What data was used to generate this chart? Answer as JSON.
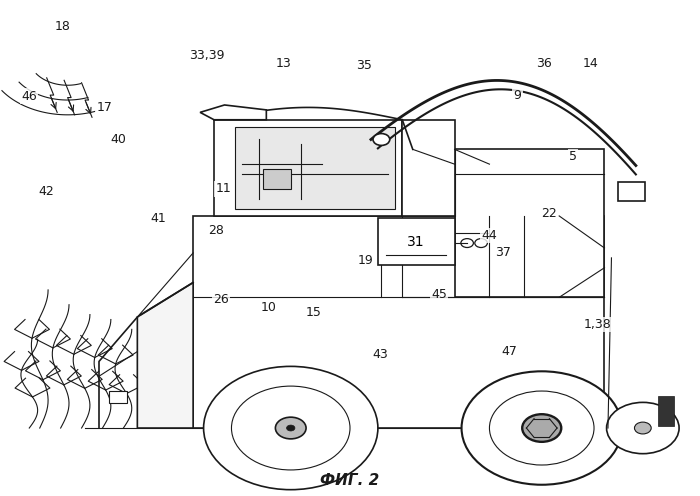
{
  "title": "ФИГ. 2",
  "title_fontsize": 11,
  "bg_color": "#ffffff",
  "line_color": "#1a1a1a",
  "label_fontsize": 9
}
